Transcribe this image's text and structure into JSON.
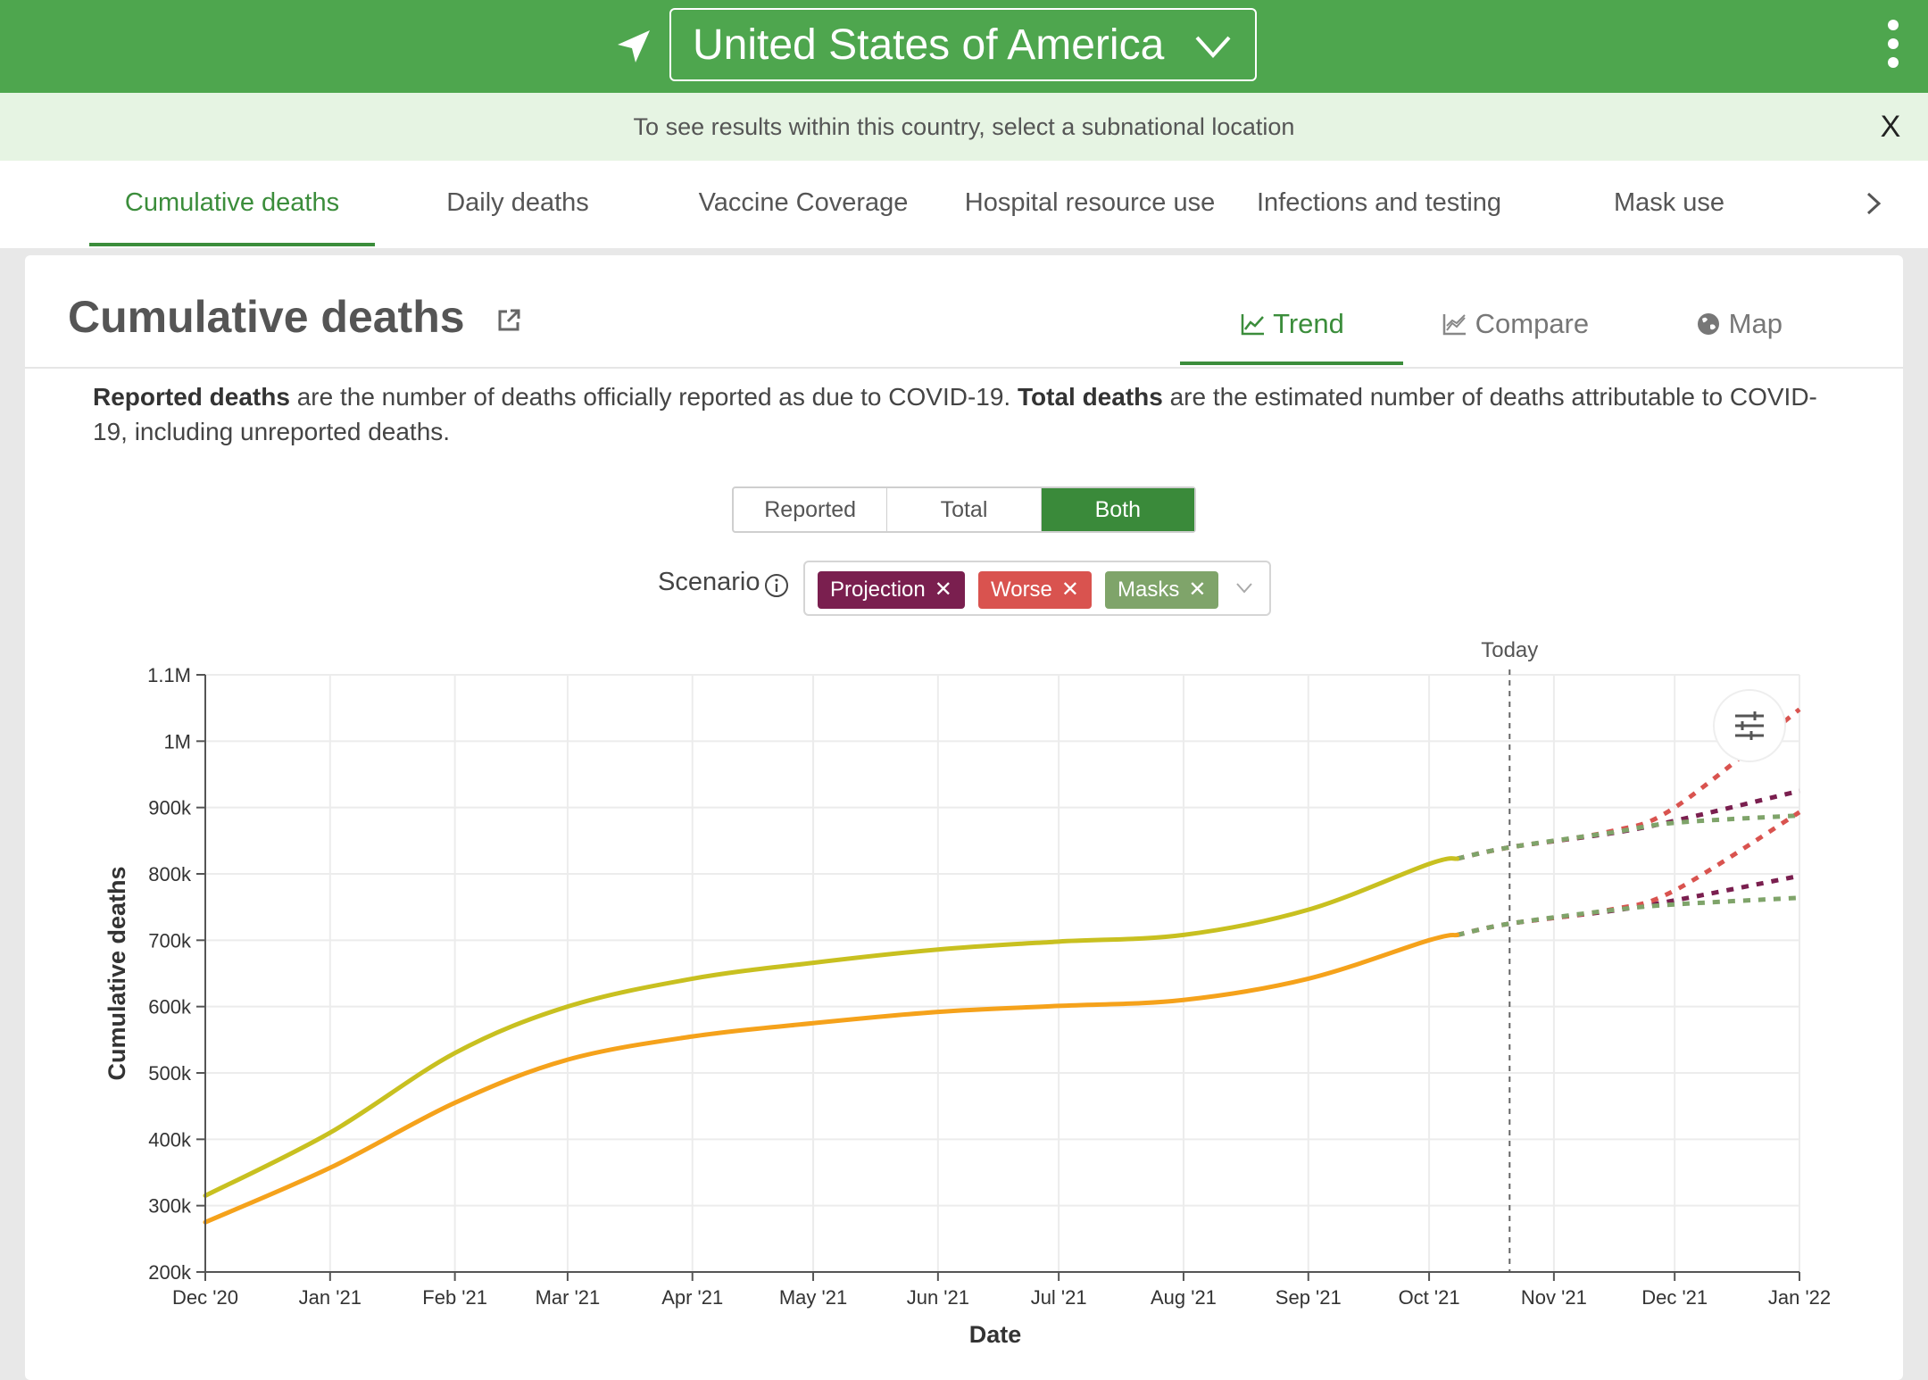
{
  "header": {
    "country": "United States of America",
    "notice": "To see results within this country, select a subnational location",
    "notice_close": "X"
  },
  "tabs": [
    {
      "label": "Cumulative deaths",
      "active": true
    },
    {
      "label": "Daily deaths",
      "active": false
    },
    {
      "label": "Vaccine Coverage",
      "active": false
    },
    {
      "label": "Hospital resource use",
      "active": false
    },
    {
      "label": "Infections and testing",
      "active": false
    },
    {
      "label": "Mask use",
      "active": false
    }
  ],
  "card": {
    "title": "Cumulative deaths",
    "views": [
      "Trend",
      "Compare",
      "Map"
    ],
    "active_view": "Trend",
    "desc_reported_bold": "Reported deaths",
    "desc_reported_rest": " are the number of deaths officially reported as due to COVID-19. ",
    "desc_total_bold": "Total deaths",
    "desc_total_rest": " are the estimated number of deaths attributable to COVID-19, including unreported deaths."
  },
  "toggle": {
    "options": [
      "Reported",
      "Total",
      "Both"
    ],
    "selected": "Both"
  },
  "scenario": {
    "label": "Scenario",
    "chips": [
      {
        "label": "Projection",
        "color": "#7a1f4f"
      },
      {
        "label": "Worse",
        "color": "#d9534f"
      },
      {
        "label": "Masks",
        "color": "#7fa46a"
      }
    ]
  },
  "colors": {
    "brand_green": "#4ea64e",
    "total_line": "#c8c020",
    "reported_line": "#f5a21b",
    "projection": "#7a1f4f",
    "worse": "#d9534f",
    "masks": "#7fa46a"
  },
  "chart_data": {
    "type": "line",
    "ylabel": "Cumulative deaths",
    "xlabel": "Date",
    "today_label": "Today",
    "today": "2021-10-21",
    "y_ticks": [
      "200k",
      "300k",
      "400k",
      "500k",
      "600k",
      "700k",
      "800k",
      "900k",
      "1M",
      "1.1M"
    ],
    "ylim": [
      200000,
      1100000
    ],
    "x_ticks": [
      "Dec '20",
      "Jan '21",
      "Feb '21",
      "Mar '21",
      "Apr '21",
      "May '21",
      "Jun '21",
      "Jul '21",
      "Aug '21",
      "Sep '21",
      "Oct '21",
      "Nov '21",
      "Dec '21",
      "Jan '22"
    ],
    "xlim": [
      "2020-12-01",
      "2022-01-01"
    ],
    "series": [
      {
        "style": "solid",
        "color": "#c8c020",
        "points": [
          [
            "2020-12-01",
            315000
          ],
          [
            "2021-01-01",
            410000
          ],
          [
            "2021-02-01",
            530000
          ],
          [
            "2021-03-01",
            600000
          ],
          [
            "2021-04-01",
            642000
          ],
          [
            "2021-05-01",
            666000
          ],
          [
            "2021-06-01",
            686000
          ],
          [
            "2021-07-01",
            698000
          ],
          [
            "2021-08-01",
            708000
          ],
          [
            "2021-09-01",
            746000
          ],
          [
            "2021-10-01",
            815000
          ],
          [
            "2021-10-08",
            823000
          ]
        ]
      },
      {
        "style": "solid",
        "color": "#f5a21b",
        "points": [
          [
            "2020-12-01",
            275000
          ],
          [
            "2021-01-01",
            357000
          ],
          [
            "2021-02-01",
            455000
          ],
          [
            "2021-03-01",
            520000
          ],
          [
            "2021-04-01",
            555000
          ],
          [
            "2021-05-01",
            575000
          ],
          [
            "2021-06-01",
            592000
          ],
          [
            "2021-07-01",
            601000
          ],
          [
            "2021-08-01",
            610000
          ],
          [
            "2021-09-01",
            642000
          ],
          [
            "2021-10-01",
            700000
          ],
          [
            "2021-10-08",
            708000
          ]
        ]
      },
      {
        "name": "Projection",
        "style": "dotted",
        "color": "#7a1f4f",
        "points": [
          [
            "2021-10-08",
            823000
          ],
          [
            "2021-10-21",
            840000
          ],
          [
            "2021-11-15",
            861000
          ],
          [
            "2021-12-01",
            880000
          ],
          [
            "2022-01-01",
            925000
          ]
        ]
      },
      {
        "name": "Worse",
        "style": "dotted",
        "color": "#d9534f",
        "points": [
          [
            "2021-10-08",
            823000
          ],
          [
            "2021-10-21",
            840000
          ],
          [
            "2021-11-15",
            864000
          ],
          [
            "2021-12-01",
            900000
          ],
          [
            "2022-01-01",
            1048000
          ]
        ]
      },
      {
        "name": "Masks",
        "style": "dotted",
        "color": "#7fa46a",
        "points": [
          [
            "2021-10-08",
            823000
          ],
          [
            "2021-10-21",
            840000
          ],
          [
            "2021-11-15",
            862000
          ],
          [
            "2021-12-01",
            877000
          ],
          [
            "2022-01-01",
            888000
          ]
        ]
      },
      {
        "name": "Projection",
        "style": "dotted",
        "color": "#7a1f4f",
        "points": [
          [
            "2021-10-08",
            708000
          ],
          [
            "2021-10-21",
            725000
          ],
          [
            "2021-11-15",
            744000
          ],
          [
            "2021-12-01",
            760000
          ],
          [
            "2022-01-01",
            797000
          ]
        ]
      },
      {
        "name": "Worse",
        "style": "dotted",
        "color": "#d9534f",
        "points": [
          [
            "2021-10-08",
            708000
          ],
          [
            "2021-10-21",
            725000
          ],
          [
            "2021-11-15",
            746000
          ],
          [
            "2021-12-01",
            775000
          ],
          [
            "2022-01-01",
            893000
          ]
        ]
      },
      {
        "name": "Masks",
        "style": "dotted",
        "color": "#7fa46a",
        "points": [
          [
            "2021-10-08",
            708000
          ],
          [
            "2021-10-21",
            725000
          ],
          [
            "2021-11-15",
            745000
          ],
          [
            "2021-12-01",
            754000
          ],
          [
            "2022-01-01",
            764000
          ]
        ]
      }
    ]
  }
}
